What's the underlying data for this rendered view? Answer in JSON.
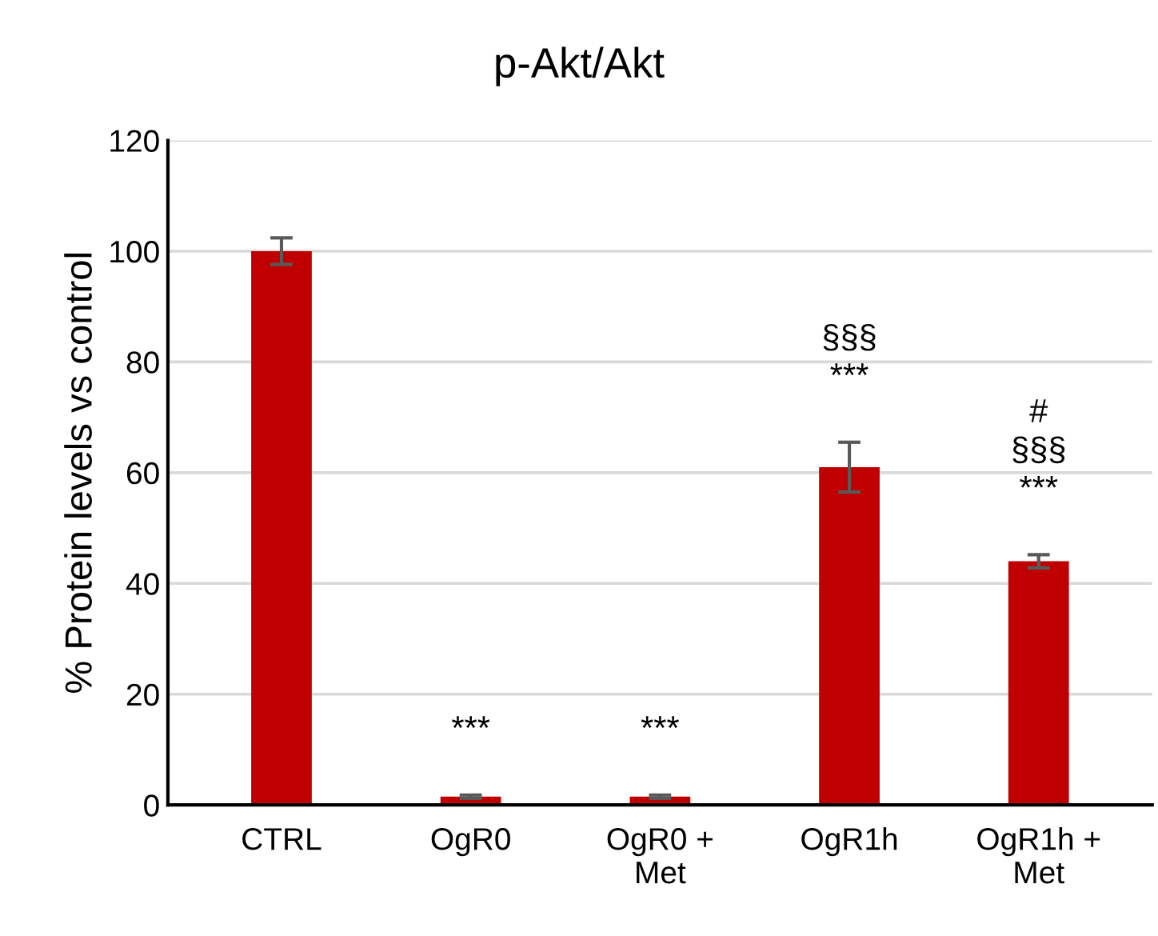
{
  "chart_data": {
    "type": "bar",
    "title": "p-Akt/Akt",
    "ylabel": "% Protein levels vs control",
    "categories": [
      "CTRL",
      "OgR0",
      "OgR0 +\nMet",
      "OgR1h",
      "OgR1h +\nMet"
    ],
    "values": [
      100,
      1.5,
      1.5,
      61,
      44
    ],
    "errors": [
      2.4,
      0.3,
      0.3,
      4.5,
      1.2
    ],
    "color": "#c00000",
    "value_labels": [
      null,
      "***",
      "***",
      "§§§\n***",
      "#\n§§§\n***"
    ],
    "ylim": [
      0,
      120
    ],
    "yticks": [
      0,
      20,
      40,
      60,
      80,
      100,
      120
    ],
    "grid": "y"
  }
}
